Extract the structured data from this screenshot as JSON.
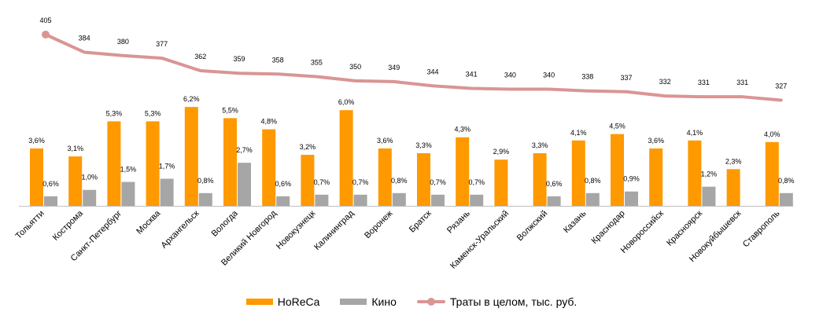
{
  "colors": {
    "horeca": "#FF9900",
    "kino": "#A6A6A6",
    "total": "#D99594",
    "axis": "#BFBFBF"
  },
  "chart_data": {
    "type": "bar",
    "categories": [
      "Тольятти",
      "Кострома",
      "Санкт-Петербург",
      "Москва",
      "Архангельск",
      "Вологда",
      "Великий Новгород",
      "Новокузнецк",
      "Калининград",
      "Воронеж",
      "Братск",
      "Рязань",
      "Каменск-Уральский",
      "Волжский",
      "Казань",
      "Краснодар",
      "Новороссийск",
      "Красноярск",
      "Новокуйбышевск",
      "Ставрополь"
    ],
    "series": [
      {
        "name": "HoReCa",
        "type": "bar",
        "values": [
          3.6,
          3.1,
          5.3,
          5.3,
          6.2,
          5.5,
          4.8,
          3.2,
          6.0,
          3.6,
          3.3,
          4.3,
          2.9,
          3.3,
          4.1,
          4.5,
          3.6,
          4.1,
          2.3,
          4.0
        ],
        "labels": [
          "3,6%",
          "3,1%",
          "5,3%",
          "5,3%",
          "6,2%",
          "5,5%",
          "4,8%",
          "3,2%",
          "6,0%",
          "3,6%",
          "3,3%",
          "4,3%",
          "2,9%",
          "3,3%",
          "4,1%",
          "4,5%",
          "3,6%",
          "4,1%",
          "2,3%",
          "4,0%"
        ]
      },
      {
        "name": "Кино",
        "type": "bar",
        "values": [
          0.6,
          1.0,
          1.5,
          1.7,
          0.8,
          2.7,
          0.6,
          0.7,
          0.7,
          0.8,
          0.7,
          0.7,
          null,
          0.6,
          0.8,
          0.9,
          null,
          1.2,
          null,
          0.8
        ],
        "labels": [
          "0,6%",
          "1,0%",
          "1,5%",
          "1,7%",
          "0,8%",
          "2,7%",
          "0,6%",
          "0,7%",
          "0,7%",
          "0,8%",
          "0,7%",
          "0,7%",
          "",
          "0,6%",
          "0,8%",
          "0,9%",
          "",
          "1,2%",
          "",
          "0,8%"
        ]
      },
      {
        "name": "Траты в целом, тыс. руб.",
        "type": "line",
        "values": [
          405,
          384,
          380,
          377,
          362,
          359,
          358,
          355,
          350,
          349,
          344,
          341,
          340,
          340,
          338,
          337,
          332,
          331,
          331,
          327
        ],
        "labels": [
          "405",
          "384",
          "380",
          "377",
          "362",
          "359",
          "358",
          "355",
          "350",
          "349",
          "344",
          "341",
          "340",
          "340",
          "338",
          "337",
          "332",
          "331",
          "331",
          "327"
        ]
      }
    ]
  }
}
